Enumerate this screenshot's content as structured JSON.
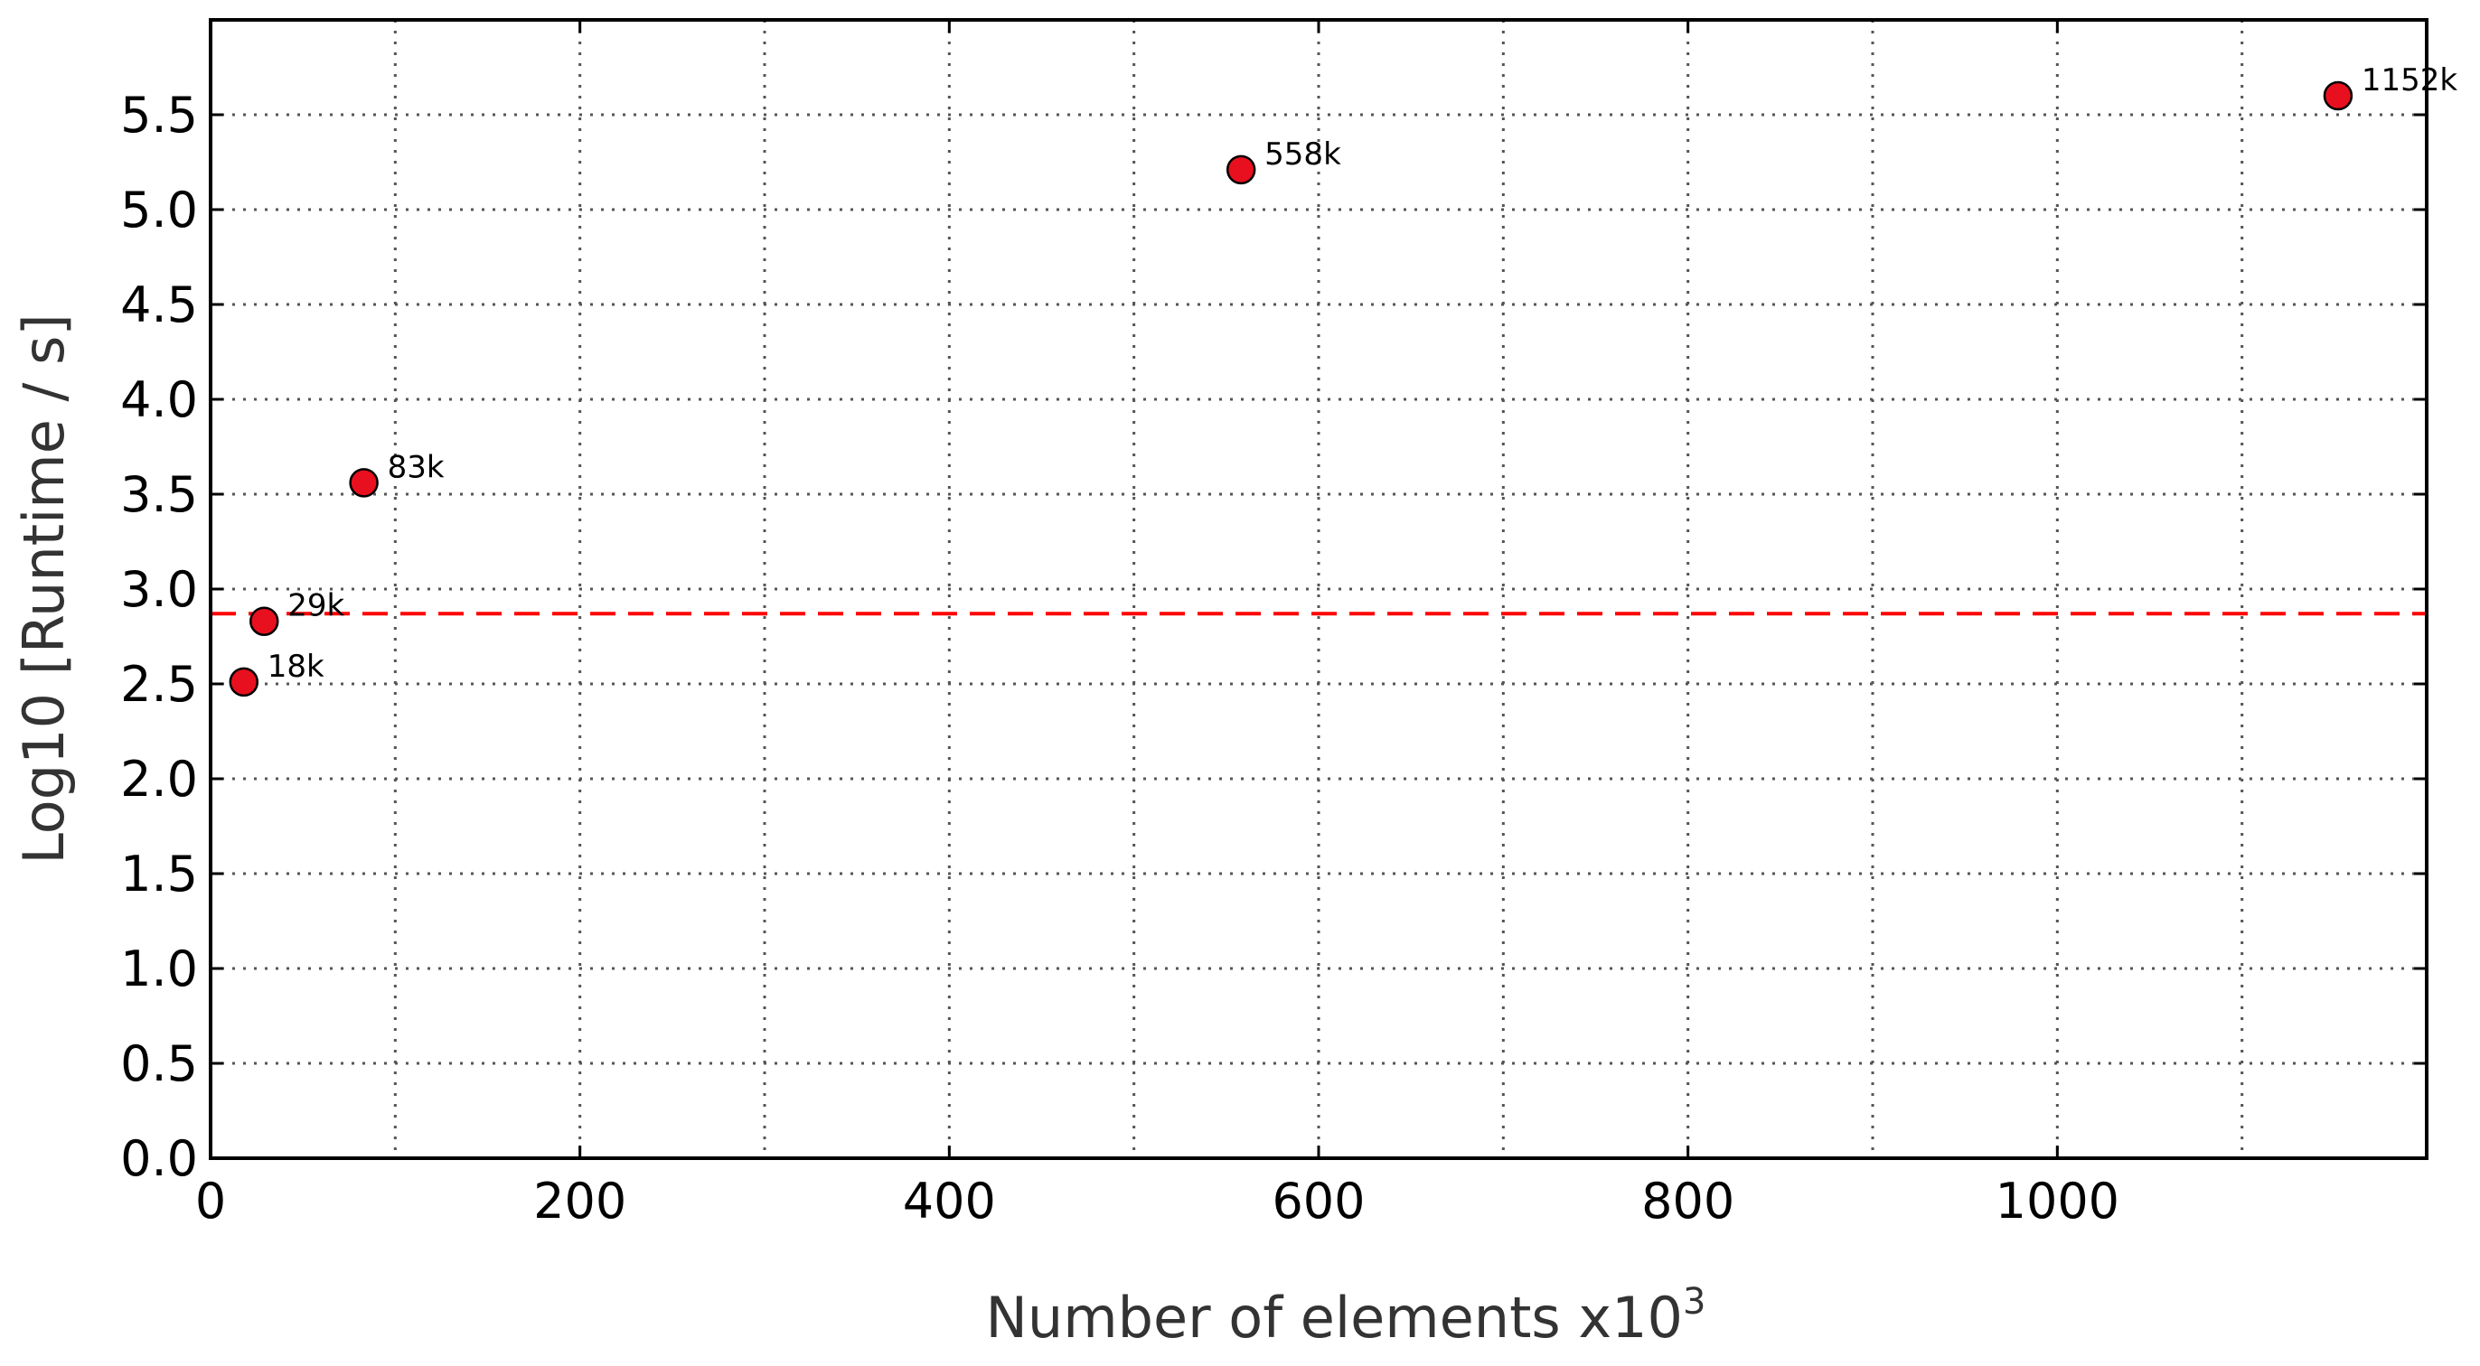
{
  "chart_data": {
    "type": "scatter",
    "xlabel": "Number of elements x10",
    "xlabel_superscript": "3",
    "ylabel": "Log10 [Runtime / s]",
    "xlim": [
      0,
      1200
    ],
    "ylim": [
      0,
      6.0
    ],
    "x_ticks": [
      0,
      200,
      400,
      600,
      800,
      1000
    ],
    "x_tick_labels": [
      "0",
      "200",
      "400",
      "600",
      "800",
      "1000"
    ],
    "x_gridlines": [
      100,
      200,
      300,
      400,
      500,
      600,
      700,
      800,
      900,
      1000,
      1100
    ],
    "y_ticks": [
      0.0,
      0.5,
      1.0,
      1.5,
      2.0,
      2.5,
      3.0,
      3.5,
      4.0,
      4.5,
      5.0,
      5.5
    ],
    "y_tick_labels": [
      "0.0",
      "0.5",
      "1.0",
      "1.5",
      "2.0",
      "2.5",
      "3.0",
      "3.5",
      "4.0",
      "4.5",
      "5.0",
      "5.5"
    ],
    "grid": true,
    "points": [
      {
        "x": 18,
        "y": 2.51,
        "label": "18k"
      },
      {
        "x": 29,
        "y": 2.83,
        "label": "29k"
      },
      {
        "x": 83,
        "y": 3.56,
        "label": "83k"
      },
      {
        "x": 558,
        "y": 5.21,
        "label": "558k"
      },
      {
        "x": 1152,
        "y": 5.6,
        "label": "1152k"
      }
    ],
    "marker_color": "#e8101e",
    "reference_line": {
      "y": 2.87,
      "style": "dashed",
      "color": "#ff0000"
    }
  }
}
